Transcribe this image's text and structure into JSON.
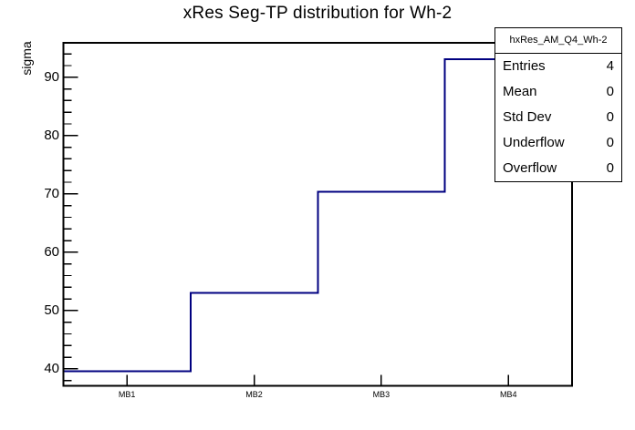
{
  "chart_data": {
    "type": "step-histogram",
    "title": "xRes Seg-TP distribution for Wh-2",
    "ylabel": "sigma",
    "xlabel": "",
    "categories": [
      "MB1",
      "MB2",
      "MB3",
      "MB4"
    ],
    "values": [
      39.6,
      53.0,
      70.4,
      93.1
    ],
    "ylim": [
      37.1,
      95.9
    ],
    "y_major_ticks": [
      40,
      50,
      60,
      70,
      80,
      90
    ],
    "y_minor_step": 2,
    "grid": false,
    "legend_position": "top-right",
    "colors": {
      "line": "#000080",
      "frame": "#000000",
      "background": "#ffffff",
      "text": "#000000"
    },
    "stats_box": {
      "title": "hxRes_AM_Q4_Wh-2",
      "rows": [
        {
          "label": "Entries",
          "value": "4"
        },
        {
          "label": "Mean",
          "value": "0"
        },
        {
          "label": "Std Dev",
          "value": "0"
        },
        {
          "label": "Underflow",
          "value": "0"
        },
        {
          "label": "Overflow",
          "value": "0"
        }
      ]
    }
  }
}
